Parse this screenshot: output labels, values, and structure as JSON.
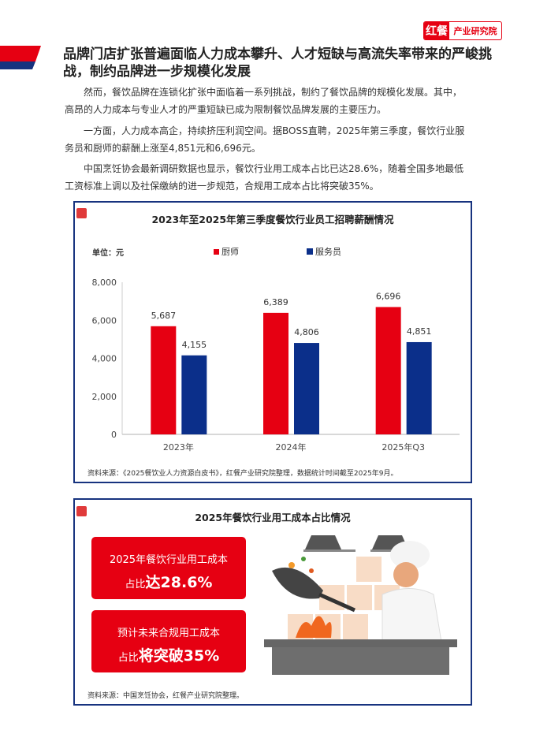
{
  "logo": {
    "mark": "红餐",
    "name": "产业研究院"
  },
  "heading": "品牌门店扩张普遍面临人力成本攀升、人才短缺与高流失率带来的严峻挑战，制约品牌进一步规模化发展",
  "paragraphs": [
    "然而，餐饮品牌在连锁化扩张中面临着一系列挑战，制约了餐饮品牌的规模化发展。其中，高昂的人力成本与专业人才的严重短缺已成为限制餐饮品牌发展的主要压力。",
    "一方面，人力成本高企，持续挤压利润空间。据BOSS直聘，2025年第三季度，餐饮行业服务员和厨师的薪酬上涨至4,851元和6,696元。",
    "中国烹饪协会最新调研数据也显示，餐饮行业用工成本占比已达28.6%，随着全国多地最低工资标准上调以及社保缴纳的进一步规范，合规用工成本占比将突破35%。"
  ],
  "chart_data": {
    "type": "bar",
    "title": "2023年至2025年第三季度餐饮行业员工招聘薪酬情况",
    "unit": "单位：元",
    "categories": [
      "2023年",
      "2024年",
      "2025年Q3"
    ],
    "series": [
      {
        "name": "厨师",
        "color": "#e60012",
        "values": [
          5687,
          6389,
          6696
        ],
        "labels": [
          "5,687",
          "6,389",
          "6,696"
        ]
      },
      {
        "name": "服务员",
        "color": "#0b2f8a",
        "values": [
          4155,
          4806,
          4851
        ],
        "labels": [
          "4,155",
          "4,806",
          "4,851"
        ]
      }
    ],
    "ylim": [
      0,
      8000
    ],
    "yticks": [
      0,
      2000,
      4000,
      6000,
      8000
    ],
    "ytick_labels": [
      "0",
      "2,000",
      "4,000",
      "6,000",
      "8,000"
    ],
    "grid": false,
    "legend": "top",
    "source": "资料来源：《2025餐饮业人力资源白皮书》，红餐产业研究院整理，数据统计时间截至2025年9月。"
  },
  "infographic": {
    "title": "2025年餐饮行业用工成本占比情况",
    "card1": {
      "line1": "2025年餐饮行业用工成本",
      "prefix": "占比",
      "highlight": "达28.6%"
    },
    "card2": {
      "line1": "预计未来合规用工成本",
      "prefix": "占比",
      "highlight": "将突破35%"
    },
    "source": "资料来源：中国烹饪协会，红餐产业研究院整理。"
  },
  "colors": {
    "brand_red": "#e60012",
    "brand_blue": "#17337f"
  }
}
